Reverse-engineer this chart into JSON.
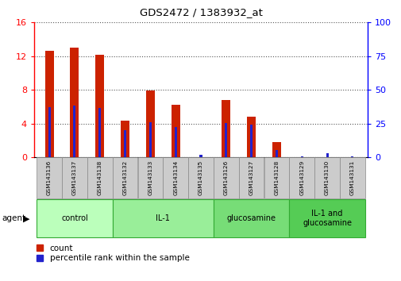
{
  "title": "GDS2472 / 1383932_at",
  "samples": [
    "GSM143136",
    "GSM143137",
    "GSM143138",
    "GSM143132",
    "GSM143133",
    "GSM143134",
    "GSM143135",
    "GSM143126",
    "GSM143127",
    "GSM143128",
    "GSM143129",
    "GSM143130",
    "GSM143131"
  ],
  "count_values": [
    12.6,
    13.0,
    12.2,
    4.4,
    7.9,
    6.2,
    0.04,
    6.8,
    4.8,
    1.8,
    0.04,
    0.04,
    0.04
  ],
  "percentile_values": [
    37.5,
    38.5,
    36.5,
    20.0,
    26.0,
    22.5,
    2.0,
    25.5,
    24.0,
    5.5,
    0.9,
    3.0,
    0.5
  ],
  "groups": [
    {
      "label": "control",
      "start": 0,
      "end": 3,
      "color": "#bbffbb"
    },
    {
      "label": "IL-1",
      "start": 3,
      "end": 7,
      "color": "#99ee99"
    },
    {
      "label": "glucosamine",
      "start": 7,
      "end": 10,
      "color": "#77dd77"
    },
    {
      "label": "IL-1 and\nglucosamine",
      "start": 10,
      "end": 13,
      "color": "#55cc55"
    }
  ],
  "ylim_left": [
    0,
    16
  ],
  "ylim_right": [
    0,
    100
  ],
  "yticks_left": [
    0,
    4,
    8,
    12,
    16
  ],
  "yticks_right": [
    0,
    25,
    50,
    75,
    100
  ],
  "bar_color": "#cc2200",
  "percentile_color": "#2222cc",
  "bar_width": 0.35,
  "grid_color": "#555555",
  "tick_bg_color": "#cccccc",
  "legend_count_label": "count",
  "legend_percentile_label": "percentile rank within the sample",
  "agent_label": "agent"
}
